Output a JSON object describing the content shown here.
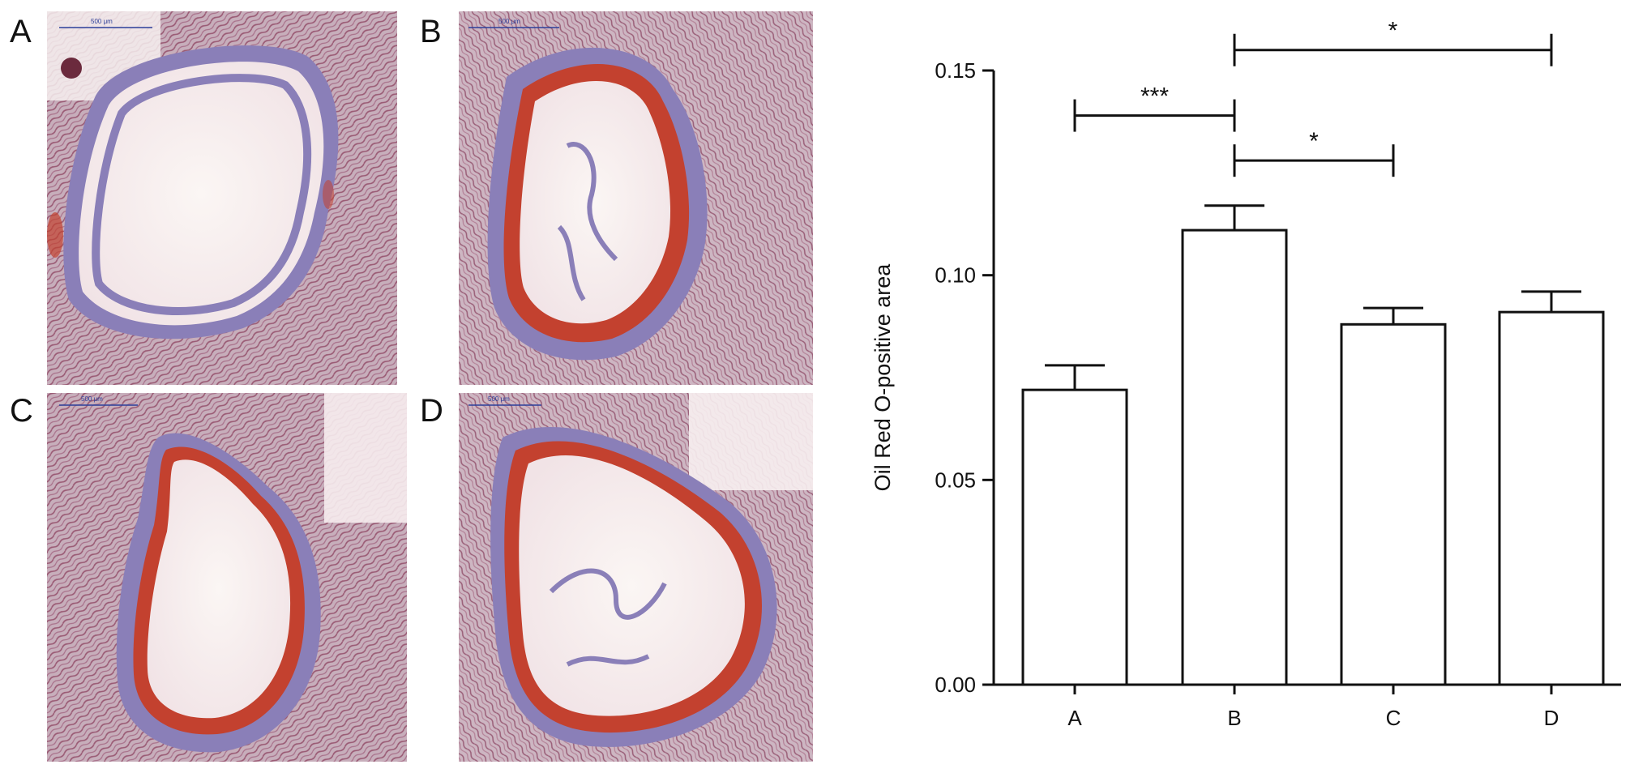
{
  "panels": [
    {
      "letter": "A",
      "scale_label": "500 μm"
    },
    {
      "letter": "B",
      "scale_label": "500 μm"
    },
    {
      "letter": "C",
      "scale_label": "500 μm"
    },
    {
      "letter": "D",
      "scale_label": "500 μm"
    }
  ],
  "colors": {
    "tissue": "#b59aa8",
    "fiber": "#a0607a",
    "wall": "#8a7fb8",
    "lipid": "#c3412f",
    "lumen": "#fbf6f4",
    "scalebar": "#2c3f9a"
  },
  "chart_data": {
    "type": "bar",
    "categories": [
      "A",
      "B",
      "C",
      "D"
    ],
    "values": [
      0.072,
      0.111,
      0.088,
      0.091
    ],
    "errors": [
      0.006,
      0.006,
      0.004,
      0.005
    ],
    "ylabel": "Oil Red O-positive area",
    "xlabel": "",
    "ylim": [
      0,
      0.15
    ],
    "yticks": [
      "0.00",
      "0.05",
      "0.10",
      "0.15"
    ],
    "bar_fill": "#ffffff",
    "bar_stroke": "#111111",
    "grid": false,
    "significance": [
      {
        "from": "A",
        "to": "B",
        "label": "***",
        "level": 0.139
      },
      {
        "from": "B",
        "to": "C",
        "label": "*",
        "level": 0.128
      },
      {
        "from": "B",
        "to": "D",
        "label": "*",
        "level": 0.155
      }
    ]
  }
}
